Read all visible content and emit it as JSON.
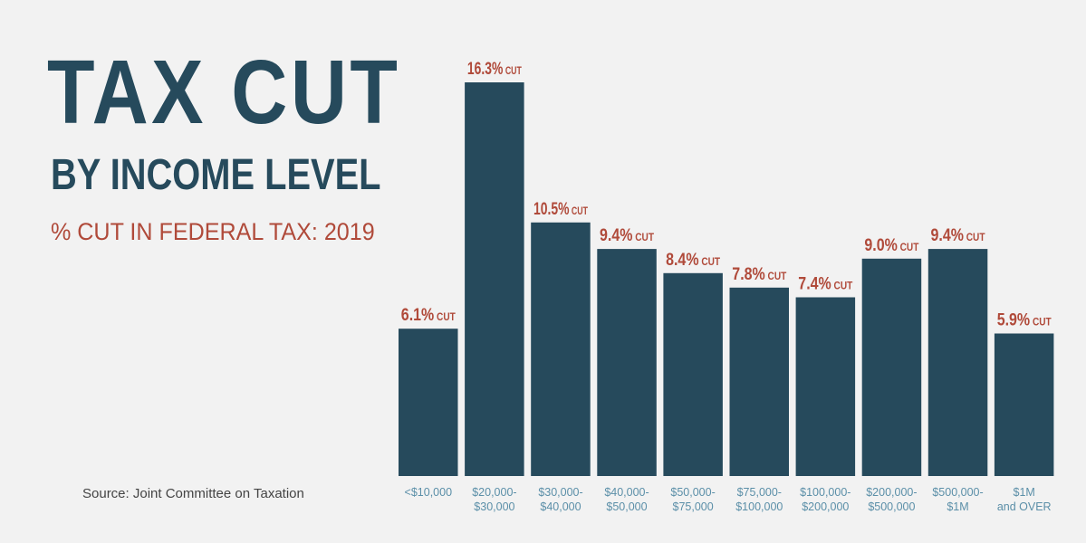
{
  "header": {
    "title": "TAX CUT",
    "subtitle": "BY INCOME LEVEL",
    "measure": "% CUT IN FEDERAL TAX: 2019"
  },
  "footer": {
    "source": "Source: Joint Committee on Taxation"
  },
  "colors": {
    "bar": "#264a5c",
    "value_label": "#b04a3a",
    "axis_label": "#5b8fa8",
    "background": "#f2f2f2"
  },
  "chart_data": {
    "type": "bar",
    "categories": [
      [
        "<$10,000"
      ],
      [
        "$20,000-",
        "$30,000"
      ],
      [
        "$30,000-",
        "$40,000"
      ],
      [
        "$40,000-",
        "$50,000"
      ],
      [
        "$50,000-",
        "$75,000"
      ],
      [
        "$75,000-",
        "$100,000"
      ],
      [
        "$100,000-",
        "$200,000"
      ],
      [
        "$200,000-",
        "$500,000"
      ],
      [
        "$500,000-",
        "$1M"
      ],
      [
        "$1M",
        "and OVER"
      ]
    ],
    "values": [
      6.1,
      16.3,
      10.5,
      9.4,
      8.4,
      7.8,
      7.4,
      9.0,
      9.4,
      5.9
    ],
    "value_labels": [
      "6.1%",
      "16.3%",
      "10.5%",
      "9.4%",
      "8.4%",
      "7.8%",
      "7.4%",
      "9.0%",
      "9.4%",
      "5.9%"
    ],
    "value_suffix": "CUT",
    "ylim": [
      0,
      16.3
    ],
    "grid": false,
    "legend": "none"
  }
}
